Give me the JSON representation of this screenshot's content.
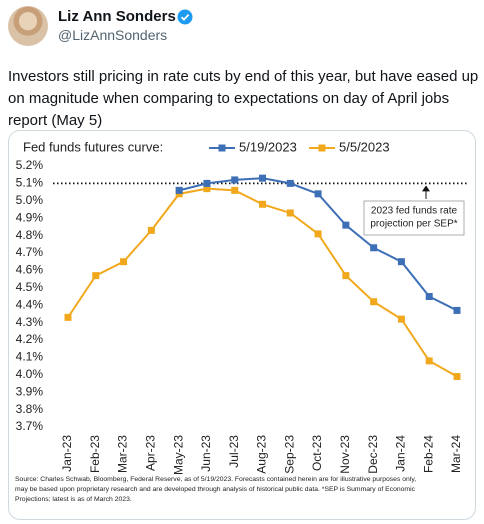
{
  "author": {
    "name": "Liz Ann Sonders",
    "handle": "@LizAnnSonders"
  },
  "tweet_lines": [
    "Investors still pricing in rate cuts by end of this year, but have eased up",
    "on magnitude when comparing to expectations on day of April jobs",
    "report (May 5)"
  ],
  "chart_data": {
    "type": "line",
    "title": "Fed funds futures curve:",
    "categories": [
      "Jan-23",
      "Feb-23",
      "Mar-23",
      "Apr-23",
      "May-23",
      "Jun-23",
      "Jul-23",
      "Aug-23",
      "Sep-23",
      "Oct-23",
      "Nov-23",
      "Dec-23",
      "Jan-24",
      "Feb-24",
      "Mar-24"
    ],
    "series": [
      {
        "name": "5/19/2023",
        "color": "#3d6fb6",
        "values": [
          null,
          null,
          null,
          null,
          5.06,
          5.1,
          5.12,
          5.13,
          5.1,
          5.04,
          4.86,
          4.73,
          4.65,
          4.45,
          4.37
        ]
      },
      {
        "name": "5/5/2023",
        "color": "#f2a81d",
        "values": [
          4.33,
          4.57,
          4.65,
          4.83,
          5.04,
          5.07,
          5.06,
          4.98,
          4.93,
          4.81,
          4.57,
          4.42,
          4.32,
          4.08,
          3.99
        ]
      }
    ],
    "ylim": [
      3.7,
      5.2
    ],
    "yticks": [
      {
        "value": 3.7,
        "label": "3.7%"
      },
      {
        "value": 3.8,
        "label": "3.8%"
      },
      {
        "value": 3.9,
        "label": "3.9%"
      },
      {
        "value": 4.0,
        "label": "4.0%"
      },
      {
        "value": 4.1,
        "label": "4.1%"
      },
      {
        "value": 4.2,
        "label": "4.2%"
      },
      {
        "value": 4.3,
        "label": "4.3%"
      },
      {
        "value": 4.4,
        "label": "4.4%"
      },
      {
        "value": 4.5,
        "label": "4.5%"
      },
      {
        "value": 4.6,
        "label": "4.6%"
      },
      {
        "value": 4.7,
        "label": "4.7%"
      },
      {
        "value": 4.8,
        "label": "4.8%"
      },
      {
        "value": 4.9,
        "label": "4.9%"
      },
      {
        "value": 5.0,
        "label": "5.0%"
      },
      {
        "value": 5.1,
        "label": "5.1%"
      },
      {
        "value": 5.2,
        "label": "5.2%"
      }
    ],
    "grid": false,
    "reference_line": {
      "value": 5.1,
      "label_lines": [
        "2023 fed funds rate",
        "projection per SEP*"
      ]
    },
    "source_lines": [
      "Source: Charles Schwab, Bloomberg, Federal Reserve, as of 5/19/2023. Forecasts contained herein are for illustrative purposes only,",
      "may be based upon proprietary research and are developed through analysis of historical public data. *SEP is Summary of Economic",
      "Projections; latest is as of March 2023."
    ]
  }
}
